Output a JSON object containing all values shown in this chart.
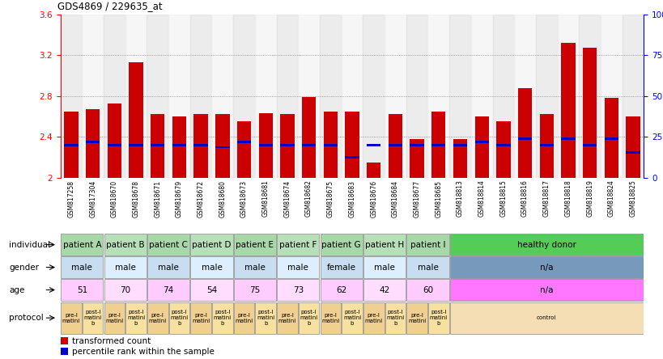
{
  "title": "GDS4869 / 229635_at",
  "samples": [
    "GSM817258",
    "GSM817304",
    "GSM818670",
    "GSM818678",
    "GSM818671",
    "GSM818679",
    "GSM818672",
    "GSM818680",
    "GSM818673",
    "GSM818681",
    "GSM818674",
    "GSM818682",
    "GSM818675",
    "GSM818683",
    "GSM818676",
    "GSM818684",
    "GSM818677",
    "GSM818685",
    "GSM818813",
    "GSM818814",
    "GSM818815",
    "GSM818816",
    "GSM818817",
    "GSM818818",
    "GSM818819",
    "GSM818824",
    "GSM818825"
  ],
  "bar_values": [
    2.65,
    2.67,
    2.73,
    3.13,
    2.62,
    2.6,
    2.62,
    2.62,
    2.55,
    2.63,
    2.62,
    2.79,
    2.65,
    2.65,
    2.15,
    2.62,
    2.38,
    2.65,
    2.38,
    2.6,
    2.55,
    2.88,
    2.62,
    3.32,
    3.27,
    2.78,
    2.6
  ],
  "percentile_values": [
    2.32,
    2.35,
    2.32,
    2.32,
    2.32,
    2.32,
    2.32,
    2.3,
    2.35,
    2.32,
    2.32,
    2.32,
    2.32,
    2.2,
    2.32,
    2.32,
    2.32,
    2.32,
    2.32,
    2.35,
    2.32,
    2.38,
    2.32,
    2.38,
    2.32,
    2.38,
    2.25
  ],
  "ymin": 2.0,
  "ymax": 3.6,
  "yticks": [
    2.0,
    2.4,
    2.8,
    3.2,
    3.6
  ],
  "ytick_labels_left": [
    "2",
    "2.4",
    "2.8",
    "3.2",
    "3.6"
  ],
  "ytick_labels_right": [
    "0",
    "25",
    "50",
    "75",
    "100%"
  ],
  "grid_values": [
    2.4,
    2.8,
    3.2
  ],
  "individuals": [
    {
      "label": "patient A",
      "start": 0,
      "end": 2,
      "color": "#a8d8a8"
    },
    {
      "label": "patient B",
      "start": 2,
      "end": 4,
      "color": "#b8e0b8"
    },
    {
      "label": "patient C",
      "start": 4,
      "end": 6,
      "color": "#a8d8a8"
    },
    {
      "label": "patient D",
      "start": 6,
      "end": 8,
      "color": "#b8e0b8"
    },
    {
      "label": "patient E",
      "start": 8,
      "end": 10,
      "color": "#a8d8a8"
    },
    {
      "label": "patient F",
      "start": 10,
      "end": 12,
      "color": "#b8e0b8"
    },
    {
      "label": "patient G",
      "start": 12,
      "end": 14,
      "color": "#a8d8a8"
    },
    {
      "label": "patient H",
      "start": 14,
      "end": 16,
      "color": "#b8e0b8"
    },
    {
      "label": "patient I",
      "start": 16,
      "end": 18,
      "color": "#a8d8a8"
    },
    {
      "label": "healthy donor",
      "start": 18,
      "end": 27,
      "color": "#55cc55"
    }
  ],
  "genders": [
    {
      "label": "male",
      "start": 0,
      "end": 2,
      "color": "#c8ddf0"
    },
    {
      "label": "male",
      "start": 2,
      "end": 4,
      "color": "#ddeeff"
    },
    {
      "label": "male",
      "start": 4,
      "end": 6,
      "color": "#c8ddf0"
    },
    {
      "label": "male",
      "start": 6,
      "end": 8,
      "color": "#ddeeff"
    },
    {
      "label": "male",
      "start": 8,
      "end": 10,
      "color": "#c8ddf0"
    },
    {
      "label": "male",
      "start": 10,
      "end": 12,
      "color": "#ddeeff"
    },
    {
      "label": "female",
      "start": 12,
      "end": 14,
      "color": "#c8ddf0"
    },
    {
      "label": "male",
      "start": 14,
      "end": 16,
      "color": "#ddeeff"
    },
    {
      "label": "male",
      "start": 16,
      "end": 18,
      "color": "#c8ddf0"
    },
    {
      "label": "n/a",
      "start": 18,
      "end": 27,
      "color": "#7799bb"
    }
  ],
  "ages": [
    {
      "label": "51",
      "start": 0,
      "end": 2,
      "color": "#ffccff"
    },
    {
      "label": "70",
      "start": 2,
      "end": 4,
      "color": "#ffddff"
    },
    {
      "label": "74",
      "start": 4,
      "end": 6,
      "color": "#ffccff"
    },
    {
      "label": "54",
      "start": 6,
      "end": 8,
      "color": "#ffddff"
    },
    {
      "label": "75",
      "start": 8,
      "end": 10,
      "color": "#ffccff"
    },
    {
      "label": "73",
      "start": 10,
      "end": 12,
      "color": "#ffddff"
    },
    {
      "label": "62",
      "start": 12,
      "end": 14,
      "color": "#ffccff"
    },
    {
      "label": "42",
      "start": 14,
      "end": 16,
      "color": "#ffddff"
    },
    {
      "label": "60",
      "start": 16,
      "end": 18,
      "color": "#ffccff"
    },
    {
      "label": "n/a",
      "start": 18,
      "end": 27,
      "color": "#ff77ff"
    }
  ],
  "protocols": [
    {
      "label": "pre-I\nmatini",
      "start": 0,
      "end": 1,
      "color": "#f0d090"
    },
    {
      "label": "post-I\nmatini\nb",
      "start": 1,
      "end": 2,
      "color": "#f8e0a0"
    },
    {
      "label": "pre-I\nmatini",
      "start": 2,
      "end": 3,
      "color": "#f0d090"
    },
    {
      "label": "post-I\nmatini\nb",
      "start": 3,
      "end": 4,
      "color": "#f8e0a0"
    },
    {
      "label": "pre-I\nmatini",
      "start": 4,
      "end": 5,
      "color": "#f0d090"
    },
    {
      "label": "post-I\nmatini\nb",
      "start": 5,
      "end": 6,
      "color": "#f8e0a0"
    },
    {
      "label": "pre-I\nmatini",
      "start": 6,
      "end": 7,
      "color": "#f0d090"
    },
    {
      "label": "post-I\nmatini\nb",
      "start": 7,
      "end": 8,
      "color": "#f8e0a0"
    },
    {
      "label": "pre-I\nmatini",
      "start": 8,
      "end": 9,
      "color": "#f0d090"
    },
    {
      "label": "post-I\nmatini\nb",
      "start": 9,
      "end": 10,
      "color": "#f8e0a0"
    },
    {
      "label": "pre-I\nmatini",
      "start": 10,
      "end": 11,
      "color": "#f0d090"
    },
    {
      "label": "post-I\nmatini\nb",
      "start": 11,
      "end": 12,
      "color": "#f8e0a0"
    },
    {
      "label": "pre-I\nmatini",
      "start": 12,
      "end": 13,
      "color": "#f0d090"
    },
    {
      "label": "post-I\nmatini\nb",
      "start": 13,
      "end": 14,
      "color": "#f8e0a0"
    },
    {
      "label": "pre-I\nmatini",
      "start": 14,
      "end": 15,
      "color": "#f0d090"
    },
    {
      "label": "post-I\nmatini\nb",
      "start": 15,
      "end": 16,
      "color": "#f8e0a0"
    },
    {
      "label": "pre-I\nmatini",
      "start": 16,
      "end": 17,
      "color": "#f0d090"
    },
    {
      "label": "post-I\nmatini\nb",
      "start": 17,
      "end": 18,
      "color": "#f8e0a0"
    },
    {
      "label": "control",
      "start": 18,
      "end": 27,
      "color": "#f5deb3"
    }
  ],
  "bar_color": "#cc0000",
  "percentile_color": "#0000cc",
  "legend_items": [
    {
      "label": "transformed count",
      "color": "#cc0000"
    },
    {
      "label": "percentile rank within the sample",
      "color": "#0000cc"
    }
  ],
  "col_bg_even": "#e0e0e0",
  "col_bg_odd": "#f0f0f0"
}
